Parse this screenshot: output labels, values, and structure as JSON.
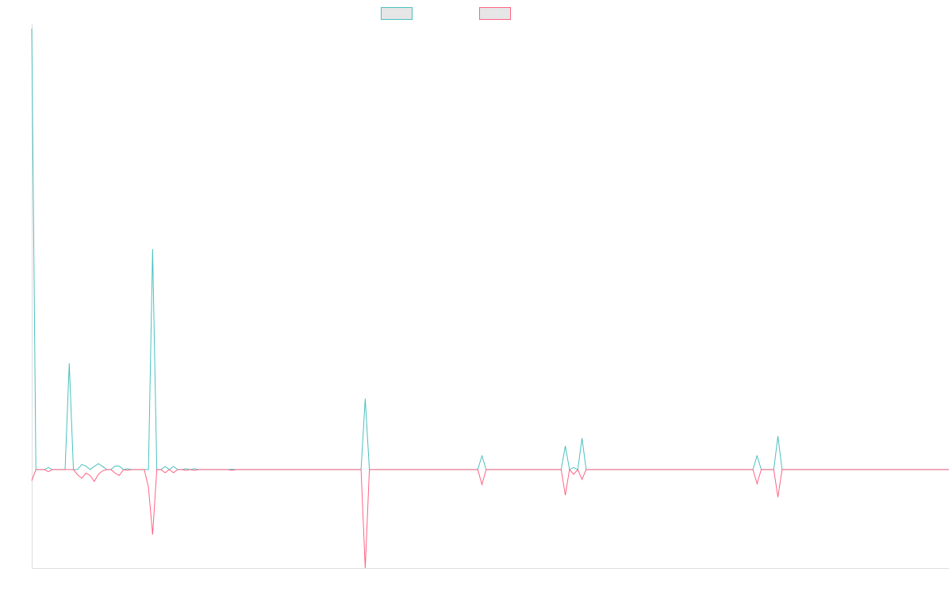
{
  "chart_data": {
    "type": "line",
    "title": "",
    "xlabel": "",
    "ylabel": "",
    "grid": false,
    "legend": {
      "position": "top-center",
      "entries": [
        {
          "color": "#4bc0c0"
        },
        {
          "color": "#ff6384"
        }
      ]
    },
    "xlim": [
      0,
      220
    ],
    "ylim": [
      -25,
      112
    ],
    "series": [
      {
        "color": "#4bc0c0",
        "x": [
          0,
          1,
          2,
          3,
          4,
          5,
          6,
          7,
          8,
          9,
          10,
          11,
          12,
          13,
          14,
          15,
          16,
          17,
          18,
          19,
          20,
          21,
          22,
          23,
          24,
          25,
          26,
          27,
          28,
          29,
          30,
          31,
          32,
          33,
          34,
          35,
          36,
          37,
          38,
          39,
          40,
          41,
          42,
          43,
          44,
          45,
          46,
          47,
          48,
          49,
          50,
          79,
          80,
          81,
          107,
          108,
          109,
          127,
          128,
          129,
          130,
          131,
          132,
          133,
          173,
          174,
          175,
          178,
          179,
          180,
          220
        ],
        "y": [
          112,
          0,
          0,
          0,
          0.5,
          0,
          0,
          0,
          0,
          27,
          0,
          0,
          1.3,
          0.9,
          0,
          0.8,
          1.5,
          0.8,
          0,
          0,
          0.9,
          0.9,
          0,
          0.2,
          0,
          0,
          0,
          0,
          0,
          56,
          0,
          0,
          0.8,
          0,
          0.8,
          0,
          0,
          0.2,
          0,
          0.2,
          0,
          0,
          0,
          0,
          0,
          0,
          0,
          0,
          0.1,
          0,
          0,
          0,
          18,
          0,
          0,
          3.5,
          0,
          0,
          6,
          0,
          0.5,
          0,
          8,
          0,
          0,
          3.5,
          0,
          0,
          8.5,
          0,
          0
        ]
      },
      {
        "color": "#ff6384",
        "x": [
          0,
          1,
          2,
          3,
          4,
          5,
          6,
          7,
          8,
          9,
          10,
          11,
          12,
          13,
          14,
          15,
          16,
          17,
          18,
          19,
          20,
          21,
          22,
          23,
          24,
          25,
          26,
          27,
          28,
          29,
          30,
          31,
          32,
          33,
          34,
          35,
          36,
          37,
          38,
          39,
          40,
          41,
          42,
          43,
          44,
          45,
          46,
          47,
          48,
          49,
          50,
          79,
          80,
          81,
          107,
          108,
          109,
          127,
          128,
          129,
          130,
          131,
          132,
          133,
          173,
          174,
          175,
          178,
          179,
          180,
          220
        ],
        "y": [
          -2.8,
          0,
          0,
          0,
          -0.5,
          0,
          0,
          0,
          0,
          0,
          0,
          -1.3,
          -2.2,
          -0.9,
          -1.5,
          -3,
          -1.2,
          -0.3,
          0,
          0,
          -0.9,
          -1.5,
          0,
          -0.2,
          0,
          0,
          0,
          0,
          -4.5,
          -16.5,
          0,
          0,
          -0.8,
          0,
          -0.8,
          0,
          0,
          -0.2,
          0,
          -0.2,
          0,
          0,
          0,
          0,
          0,
          0,
          0,
          0,
          -0.2,
          0,
          0,
          0,
          -25,
          0,
          0,
          -3.8,
          0,
          0,
          -6.5,
          0,
          -1.2,
          0,
          -2.5,
          0,
          0,
          -3.6,
          0,
          0,
          -7,
          0,
          0
        ]
      }
    ]
  }
}
